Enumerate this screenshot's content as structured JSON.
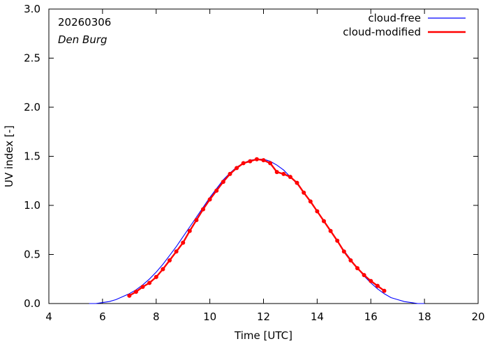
{
  "chart_data": {
    "type": "line",
    "title": "",
    "xlabel": "Time  [UTC]",
    "ylabel": "UV index  [-]",
    "xlim": [
      4,
      20
    ],
    "ylim": [
      0,
      3.0
    ],
    "x_ticks": [
      4,
      6,
      8,
      10,
      12,
      14,
      16,
      18,
      20
    ],
    "x_tick_labels": [
      "4",
      "6",
      "8",
      "10",
      "12",
      "14",
      "16",
      "18",
      "20"
    ],
    "y_ticks": [
      0,
      0.5,
      1.0,
      1.5,
      2.0,
      2.5,
      3.0
    ],
    "y_tick_labels": [
      "0.0",
      "0.5",
      "1.0",
      "1.5",
      "2.0",
      "2.5",
      "3.0"
    ],
    "grid": false,
    "legend_position": "top-right",
    "annotations": {
      "date": "20260306",
      "location": "Den Burg"
    },
    "colors": {
      "cloud_free": "#0000ff",
      "cloud_modified": "#ff0000"
    },
    "series": [
      {
        "name": "cloud-free",
        "style": "line",
        "x": [
          5.5,
          5.75,
          6.0,
          6.25,
          6.5,
          6.75,
          7.0,
          7.25,
          7.5,
          7.75,
          8.0,
          8.25,
          8.5,
          8.75,
          9.0,
          9.25,
          9.5,
          9.75,
          10.0,
          10.25,
          10.5,
          10.75,
          11.0,
          11.25,
          11.5,
          11.75,
          12.0,
          12.25,
          12.5,
          12.75,
          13.0,
          13.25,
          13.5,
          13.75,
          14.0,
          14.25,
          14.5,
          14.75,
          15.0,
          15.25,
          15.5,
          15.75,
          16.0,
          16.25,
          16.5,
          16.75,
          17.0,
          17.25,
          17.5,
          17.75,
          18.0
        ],
        "y": [
          0.0,
          0.0,
          0.01,
          0.02,
          0.04,
          0.07,
          0.1,
          0.14,
          0.19,
          0.25,
          0.32,
          0.4,
          0.49,
          0.58,
          0.68,
          0.78,
          0.88,
          0.98,
          1.08,
          1.17,
          1.26,
          1.33,
          1.39,
          1.43,
          1.46,
          1.47,
          1.47,
          1.45,
          1.41,
          1.36,
          1.29,
          1.22,
          1.13,
          1.04,
          0.94,
          0.84,
          0.74,
          0.64,
          0.54,
          0.45,
          0.36,
          0.28,
          0.21,
          0.15,
          0.1,
          0.06,
          0.04,
          0.02,
          0.01,
          0.0,
          0.0
        ]
      },
      {
        "name": "cloud-modified",
        "style": "line-markers",
        "x": [
          7.0,
          7.25,
          7.5,
          7.75,
          8.0,
          8.25,
          8.5,
          8.75,
          9.0,
          9.25,
          9.5,
          9.75,
          10.0,
          10.25,
          10.5,
          10.75,
          11.0,
          11.25,
          11.5,
          11.75,
          12.0,
          12.25,
          12.5,
          12.75,
          13.0,
          13.25,
          13.5,
          13.75,
          14.0,
          14.25,
          14.5,
          14.75,
          15.0,
          15.25,
          15.5,
          15.75,
          16.0,
          16.25,
          16.5
        ],
        "y": [
          0.08,
          0.12,
          0.17,
          0.21,
          0.27,
          0.35,
          0.44,
          0.53,
          0.62,
          0.74,
          0.85,
          0.96,
          1.06,
          1.15,
          1.24,
          1.32,
          1.38,
          1.43,
          1.45,
          1.47,
          1.46,
          1.43,
          1.34,
          1.32,
          1.29,
          1.23,
          1.13,
          1.04,
          0.94,
          0.84,
          0.74,
          0.64,
          0.53,
          0.44,
          0.36,
          0.29,
          0.23,
          0.18,
          0.13
        ]
      }
    ]
  }
}
